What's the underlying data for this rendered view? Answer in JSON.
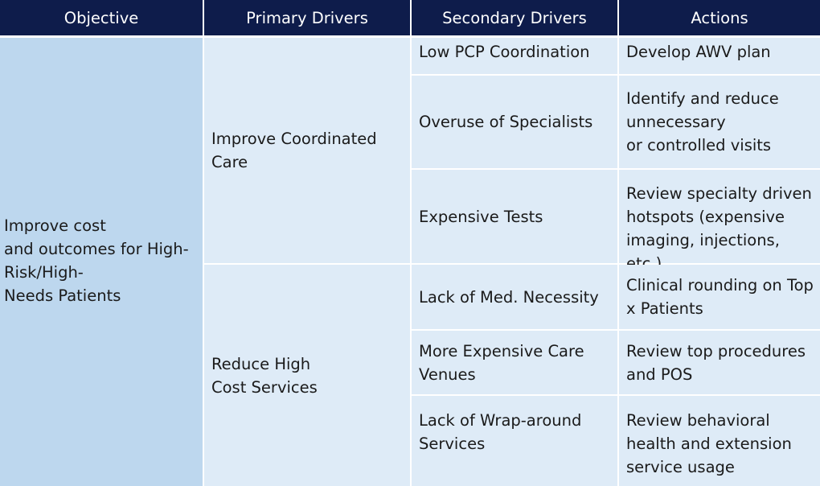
{
  "headers": {
    "objective": "Objective",
    "primary": "Primary Drivers",
    "secondary": "Secondary Drivers",
    "actions": "Actions"
  },
  "objective": "Improve cost\nand outcomes for High-\nRisk/High-\nNeeds Patients",
  "primary_drivers": [
    "Improve Coordinated\nCare",
    "Reduce High\nCost Services"
  ],
  "rows": [
    {
      "secondary": "Low PCP Coordination",
      "action": "Develop AWV plan"
    },
    {
      "secondary": "Overuse of Specialists",
      "action": "Identify and reduce\nunnecessary\nor controlled visits"
    },
    {
      "secondary": "Expensive Tests",
      "action": "Review specialty driven\nhotspots (expensive\nimaging, injections, etc.)"
    },
    {
      "secondary": "Lack of Med. Necessity",
      "action": "Clinical rounding on Top\nx Patients"
    },
    {
      "secondary": "More Expensive Care\nVenues",
      "action": "Review top procedures\nand POS"
    },
    {
      "secondary": "Lack of Wrap-around\nServices",
      "action": "Review behavioral\nhealth and extension\nservice usage"
    }
  ]
}
